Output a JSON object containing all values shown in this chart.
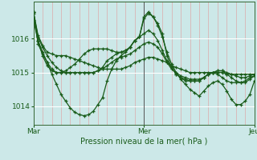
{
  "xlabel": "Pression niveau de la mer( hPa )",
  "bg_color": "#cce8e8",
  "plot_bg_color": "#cce8e8",
  "grid_color_h": "#ffffff",
  "grid_color_v": "#ddaaaa",
  "line_color": "#1a5c1a",
  "marker": "+",
  "markersize": 3.5,
  "linewidth": 0.9,
  "xticks": [
    0,
    24,
    48
  ],
  "xtick_labels": [
    "Mar",
    "Mer",
    "Jeu"
  ],
  "yticks": [
    1014,
    1015,
    1016
  ],
  "ylim": [
    1013.45,
    1017.1
  ],
  "xlim": [
    0,
    48
  ],
  "vline_x": 24,
  "series": [
    [
      1016.8,
      1016.1,
      1015.8,
      1015.6,
      1015.55,
      1015.5,
      1015.5,
      1015.5,
      1015.45,
      1015.4,
      1015.35,
      1015.3,
      1015.25,
      1015.2,
      1015.15,
      1015.1,
      1015.1,
      1015.1,
      1015.1,
      1015.1,
      1015.15,
      1015.2,
      1015.3,
      1015.35,
      1015.4,
      1015.45,
      1015.45,
      1015.4,
      1015.35,
      1015.3,
      1015.2,
      1015.15,
      1015.1,
      1015.05,
      1015.0,
      1015.0,
      1015.0,
      1015.0,
      1015.0,
      1015.0,
      1015.0,
      1015.0,
      1014.95,
      1014.95,
      1014.95,
      1014.95,
      1014.95,
      1014.95,
      1014.95
    ],
    [
      1016.8,
      1016.05,
      1015.75,
      1015.5,
      1015.3,
      1015.15,
      1015.05,
      1015.0,
      1015.0,
      1015.0,
      1015.0,
      1015.0,
      1015.0,
      1015.0,
      1015.05,
      1015.1,
      1015.2,
      1015.3,
      1015.4,
      1015.45,
      1015.5,
      1015.55,
      1015.65,
      1015.75,
      1015.85,
      1015.9,
      1015.85,
      1015.75,
      1015.55,
      1015.3,
      1015.1,
      1015.0,
      1014.9,
      1014.85,
      1014.8,
      1014.8,
      1014.8,
      1014.85,
      1014.95,
      1015.0,
      1015.05,
      1015.05,
      1015.0,
      1014.95,
      1014.9,
      1014.85,
      1014.85,
      1014.9,
      1014.95
    ],
    [
      1016.8,
      1015.85,
      1015.55,
      1015.3,
      1014.95,
      1014.65,
      1014.35,
      1014.15,
      1013.95,
      1013.82,
      1013.75,
      1013.72,
      1013.75,
      1013.85,
      1014.05,
      1014.25,
      1014.75,
      1015.1,
      1015.35,
      1015.5,
      1015.6,
      1015.75,
      1015.95,
      1016.05,
      1016.6,
      1016.75,
      1016.65,
      1016.4,
      1016.05,
      1015.6,
      1015.25,
      1015.0,
      1014.8,
      1014.65,
      1014.5,
      1014.4,
      1014.3,
      1014.45,
      1014.6,
      1014.7,
      1014.75,
      1014.65,
      1014.45,
      1014.2,
      1014.05,
      1014.05,
      1014.15,
      1014.35,
      1014.75
    ],
    [
      1016.55,
      1015.95,
      1015.6,
      1015.3,
      1015.1,
      1015.0,
      1015.0,
      1015.05,
      1015.15,
      1015.25,
      1015.4,
      1015.55,
      1015.65,
      1015.7,
      1015.7,
      1015.7,
      1015.7,
      1015.65,
      1015.6,
      1015.6,
      1015.65,
      1015.75,
      1015.95,
      1016.05,
      1016.65,
      1016.8,
      1016.65,
      1016.45,
      1016.15,
      1015.5,
      1015.15,
      1014.95,
      1014.85,
      1014.8,
      1014.75,
      1014.75,
      1014.75,
      1014.85,
      1014.95,
      1015.0,
      1014.95,
      1014.85,
      1014.75,
      1014.7,
      1014.7,
      1014.7,
      1014.75,
      1014.85,
      1014.9
    ],
    [
      1016.75,
      1015.95,
      1015.5,
      1015.2,
      1015.05,
      1015.0,
      1015.0,
      1015.0,
      1015.0,
      1015.0,
      1015.0,
      1015.0,
      1015.0,
      1015.0,
      1015.05,
      1015.15,
      1015.35,
      1015.45,
      1015.55,
      1015.6,
      1015.65,
      1015.75,
      1015.95,
      1016.05,
      1016.15,
      1016.25,
      1016.15,
      1015.95,
      1015.65,
      1015.35,
      1015.15,
      1014.95,
      1014.85,
      1014.75,
      1014.75,
      1014.75,
      1014.75,
      1014.85,
      1014.95,
      1015.0,
      1015.05,
      1015.05,
      1014.95,
      1014.85,
      1014.75,
      1014.7,
      1014.7,
      1014.8,
      1014.9
    ]
  ]
}
